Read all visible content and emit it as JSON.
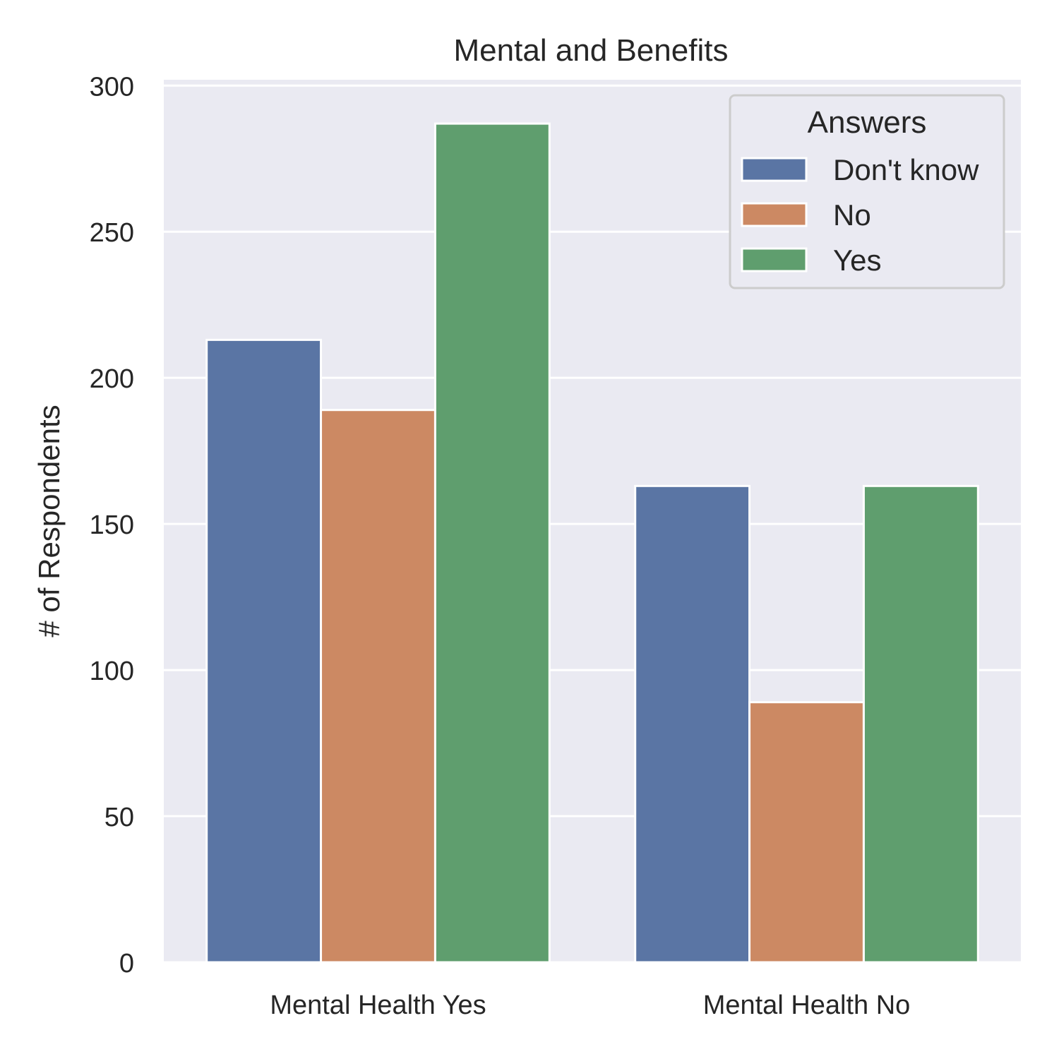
{
  "chart_data": {
    "type": "bar",
    "title": "Mental and Benefits",
    "xlabel": "",
    "ylabel": "# of Respondents",
    "ylim": [
      0,
      302
    ],
    "yticks": [
      "0",
      "50",
      "100",
      "150",
      "200",
      "250",
      "300"
    ],
    "categories": [
      "Mental Health Yes",
      "Mental Health No"
    ],
    "series": [
      {
        "name": "Don't know",
        "color": "#5a75a4",
        "values": [
          213,
          163
        ]
      },
      {
        "name": "No",
        "color": "#cc8963",
        "values": [
          189,
          89
        ]
      },
      {
        "name": "Yes",
        "color": "#5f9e6e",
        "values": [
          287,
          163
        ]
      }
    ],
    "legend": {
      "title": "Answers",
      "position": "top-right"
    },
    "grid": true,
    "background": "#eaeaf2"
  }
}
